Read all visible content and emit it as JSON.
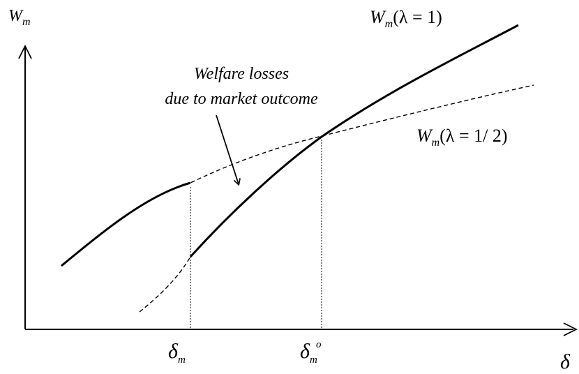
{
  "axes": {
    "y_label_main": "W",
    "y_label_sub": "m",
    "x_label": "δ"
  },
  "ticks": {
    "delta_m_main": "δ",
    "delta_m_sub": "m",
    "delta_mo_main": "δ",
    "delta_mo_sub": "m",
    "delta_mo_sup": "o"
  },
  "curve_labels": {
    "lambda1": {
      "w": "W",
      "sub": "m",
      "expr": "(λ = 1)"
    },
    "lambda_half": {
      "w": "W",
      "sub": "m",
      "expr": "(λ = 1/ 2)"
    }
  },
  "annotation": {
    "line1": "Welfare losses",
    "line2": "due to market outcome"
  },
  "styles": {
    "solid_stroke": "#000000",
    "dashed_stroke": "#000000"
  }
}
